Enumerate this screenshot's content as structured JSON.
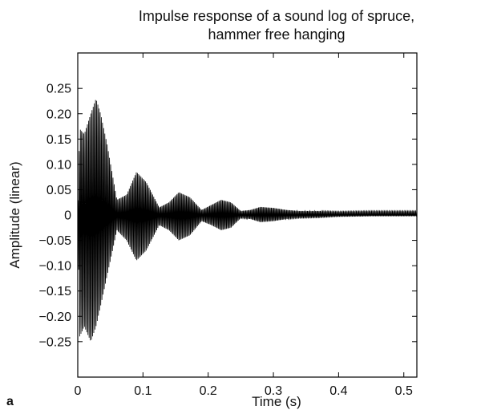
{
  "chart_data": {
    "type": "line",
    "title": "Impulse response of a sound log of spruce,",
    "subtitle": "hammer free hanging",
    "xlabel": "Time (s)",
    "ylabel": "Amplitude (linear)",
    "panel_label": "a",
    "xlim": [
      0,
      0.52
    ],
    "ylim": [
      -0.32,
      0.32
    ],
    "x_ticks": [
      0,
      0.1,
      0.2,
      0.3,
      0.4,
      0.5
    ],
    "x_tick_labels": [
      "0",
      "0.1",
      "0.2",
      "0.3",
      "0.4",
      "0.5"
    ],
    "y_ticks": [
      0.25,
      0.2,
      0.15,
      0.1,
      0.05,
      0,
      -0.05,
      -0.1,
      -0.15,
      -0.2,
      -0.25
    ],
    "y_tick_labels": [
      "0.25",
      "0.20",
      "0.15",
      "0.10",
      "0.05",
      "0",
      "−0.05",
      "−0.10",
      "−0.15",
      "−0.20",
      "−0.25"
    ],
    "grid": false,
    "series": [
      {
        "color": "#000000",
        "oscillation_frequency_hz": 560,
        "envelope": {
          "t": [
            0,
            0.003,
            0.01,
            0.02,
            0.028,
            0.035,
            0.045,
            0.06,
            0.075,
            0.09,
            0.105,
            0.125,
            0.14,
            0.155,
            0.172,
            0.19,
            0.205,
            0.22,
            0.235,
            0.25,
            0.265,
            0.28,
            0.3,
            0.32,
            0.34,
            0.37,
            0.4,
            0.45,
            0.5,
            0.52
          ],
          "upper": [
            0.0,
            0.17,
            0.16,
            0.2,
            0.23,
            0.2,
            0.14,
            0.03,
            0.04,
            0.085,
            0.065,
            0.015,
            0.025,
            0.045,
            0.035,
            0.01,
            0.02,
            0.03,
            0.025,
            0.008,
            0.01,
            0.016,
            0.014,
            0.01,
            0.008,
            0.008,
            0.007,
            0.008,
            0.008,
            0.008
          ],
          "lower": [
            0.0,
            -0.24,
            -0.22,
            -0.25,
            -0.22,
            -0.18,
            -0.12,
            -0.03,
            -0.05,
            -0.09,
            -0.07,
            -0.02,
            -0.03,
            -0.05,
            -0.04,
            -0.012,
            -0.02,
            -0.03,
            -0.025,
            -0.006,
            -0.008,
            -0.014,
            -0.012,
            -0.008,
            -0.006,
            -0.005,
            -0.003,
            -0.002,
            -0.002,
            -0.002
          ]
        }
      }
    ]
  }
}
